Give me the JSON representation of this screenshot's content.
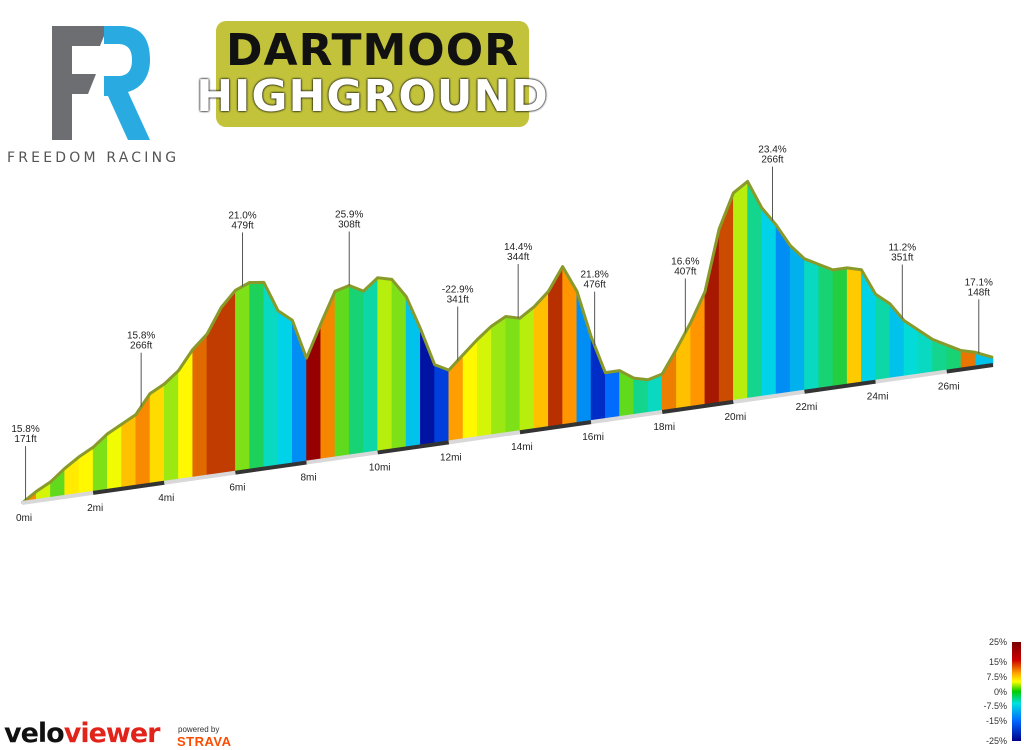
{
  "header": {
    "freedom_racing_caption": "FREEDOM RACING",
    "event_line1": "DARTMOOR",
    "event_line2": "HIGHGROUND"
  },
  "colors": {
    "fr_grey": "#6d6e71",
    "fr_blue": "#29abe2",
    "badge_olive": "#c2c33b"
  },
  "chart_data": {
    "type": "area",
    "title": "",
    "xlabel": "",
    "ylabel": "",
    "x_unit": "mi",
    "xlim": [
      0,
      27.3
    ],
    "x_ticks": [
      "0mi",
      "2mi",
      "4mi",
      "6mi",
      "8mi",
      "10mi",
      "12mi",
      "14mi",
      "16mi",
      "18mi",
      "20mi",
      "22mi",
      "24mi",
      "26mi"
    ],
    "distance_mi": [
      0,
      0.4,
      0.8,
      1.2,
      1.6,
      2.0,
      2.4,
      2.8,
      3.2,
      3.6,
      4.0,
      4.4,
      4.8,
      5.2,
      5.6,
      6.0,
      6.4,
      6.8,
      7.2,
      7.6,
      8.0,
      8.4,
      8.8,
      9.2,
      9.6,
      10.0,
      10.4,
      10.8,
      11.2,
      11.6,
      12.0,
      12.4,
      12.8,
      13.2,
      13.6,
      14.0,
      14.4,
      14.8,
      15.2,
      15.6,
      16.0,
      16.4,
      16.8,
      17.2,
      17.6,
      18.0,
      18.4,
      18.8,
      19.2,
      19.6,
      20.0,
      20.4,
      20.8,
      21.2,
      21.6,
      22.0,
      22.4,
      22.8,
      23.2,
      23.6,
      24.0,
      24.4,
      24.8,
      25.2,
      25.6,
      26.0,
      26.4,
      26.8,
      27.3
    ],
    "elevation_rel": [
      0,
      5,
      9,
      15,
      20,
      24,
      30,
      34,
      38,
      48,
      52,
      58,
      68,
      75,
      88,
      96,
      99,
      98,
      82,
      76,
      55,
      72,
      88,
      90,
      86,
      92,
      90,
      80,
      62,
      42,
      38,
      45,
      52,
      58,
      62,
      60,
      65,
      72,
      84,
      70,
      45,
      25,
      25,
      20,
      18,
      20,
      32,
      45,
      60,
      92,
      110,
      115,
      100,
      90,
      78,
      70,
      66,
      62,
      62,
      60,
      46,
      40,
      30,
      24,
      18,
      14,
      10,
      8,
      4
    ],
    "gradient_pct": [
      15.8,
      6,
      2,
      9,
      8,
      3,
      7,
      12,
      15.8,
      10,
      4,
      8,
      18,
      21,
      21,
      3,
      -2,
      -6,
      -8,
      -12,
      25.9,
      16,
      2,
      -3,
      -5,
      5,
      3,
      -9,
      -22.9,
      -18,
      14.4,
      8,
      6,
      4,
      3,
      5,
      12,
      21.8,
      15,
      -12,
      -20,
      -14,
      2,
      -4,
      -6,
      16.6,
      12,
      15,
      23.4,
      20,
      5,
      -4,
      -8,
      -12,
      -10,
      -6,
      -3,
      -1,
      11.2,
      -8,
      -5,
      -9,
      -7,
      -6,
      -4,
      -3,
      17.1,
      -9,
      -10
    ],
    "annotations": [
      {
        "x": 0.1,
        "grade": "15.8%",
        "height": "171ft"
      },
      {
        "x": 3.35,
        "grade": "15.8%",
        "height": "266ft"
      },
      {
        "x": 6.2,
        "grade": "21.0%",
        "height": "479ft"
      },
      {
        "x": 9.2,
        "grade": "25.9%",
        "height": "308ft"
      },
      {
        "x": 12.25,
        "grade": "-22.9%",
        "height": "341ft"
      },
      {
        "x": 13.95,
        "grade": "14.4%",
        "height": "344ft"
      },
      {
        "x": 16.1,
        "grade": "21.8%",
        "height": "476ft"
      },
      {
        "x": 18.65,
        "grade": "16.6%",
        "height": "407ft"
      },
      {
        "x": 21.1,
        "grade": "23.4%",
        "height": "266ft"
      },
      {
        "x": 24.75,
        "grade": "11.2%",
        "height": "351ft"
      },
      {
        "x": 26.9,
        "grade": "17.1%",
        "height": "148ft"
      }
    ],
    "legend": {
      "placement": "bottom-right",
      "ticks": [
        "25%",
        "15%",
        "7.5%",
        "0%",
        "-7.5%",
        "-15%",
        "-25%"
      ]
    }
  },
  "footer": {
    "veloviewer_velo": "velo",
    "veloviewer_viewer": "viewer",
    "powered_by": "powered by",
    "strava": "STRAVA"
  }
}
